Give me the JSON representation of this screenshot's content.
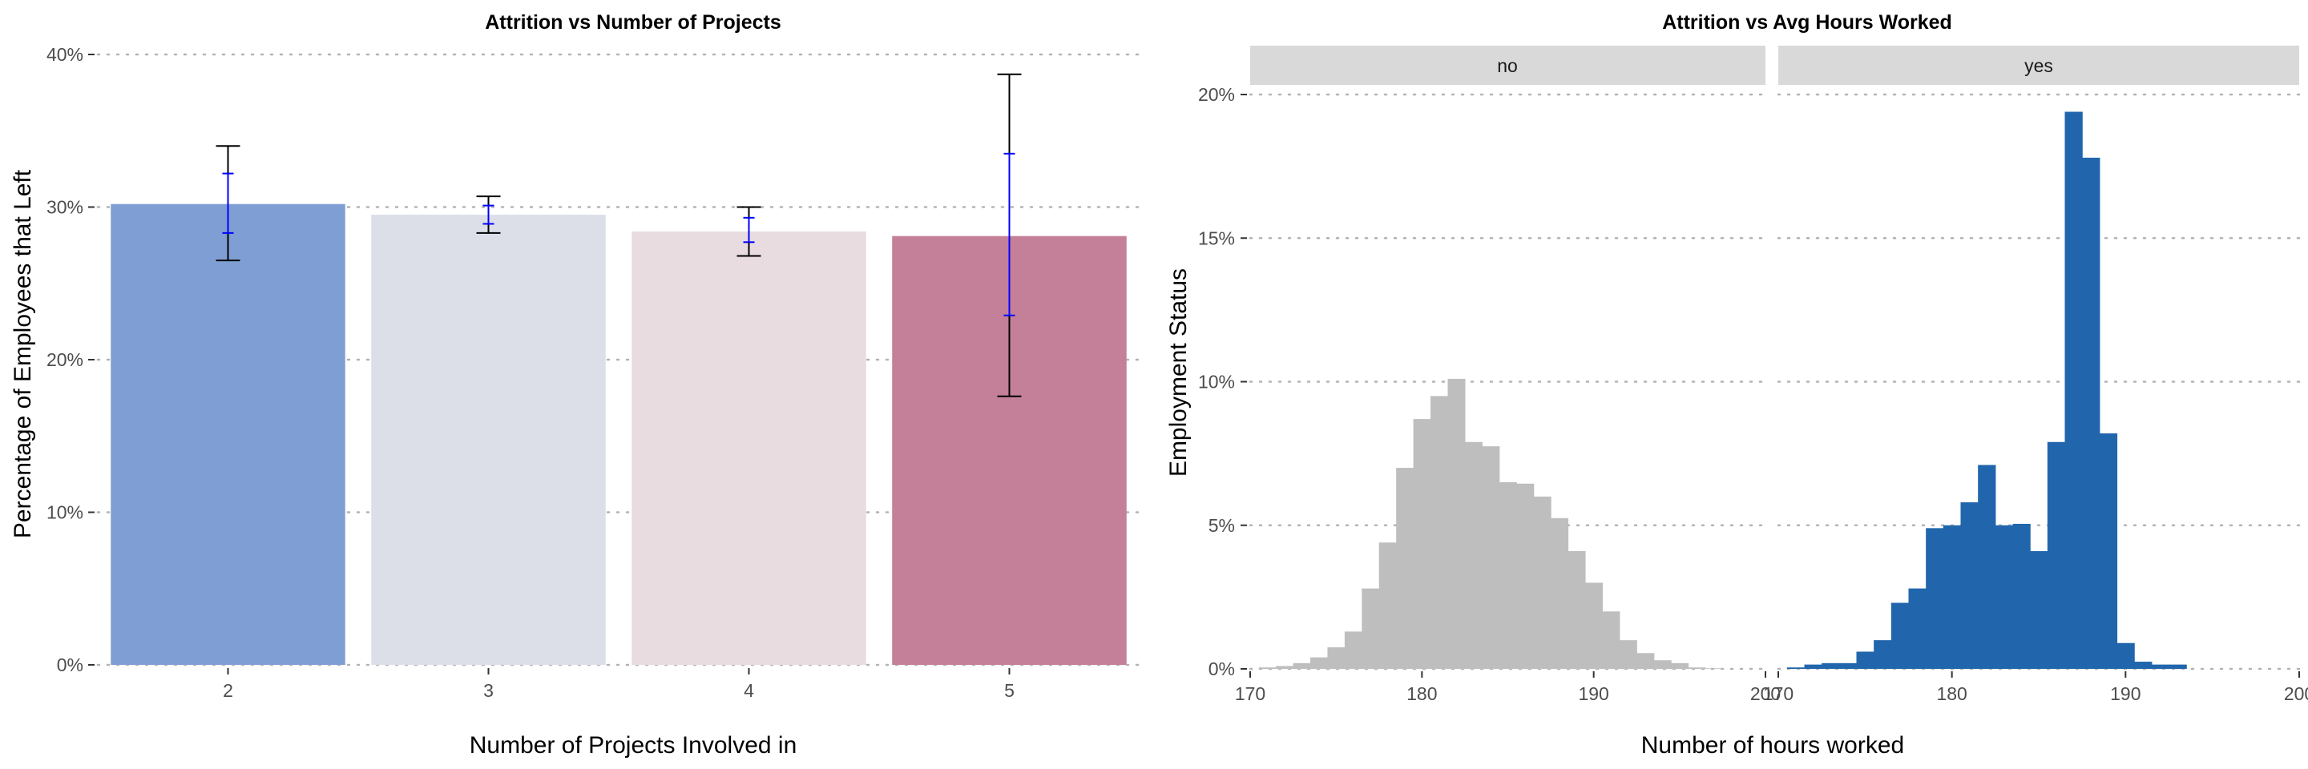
{
  "chart_data": [
    {
      "type": "bar",
      "title": "Attrition vs Number of Projects",
      "xlabel": "Number of Projects Involved in",
      "ylabel": "Percentage of Employees that Left",
      "categories": [
        "2",
        "3",
        "4",
        "5"
      ],
      "values": [
        30.2,
        29.5,
        28.4,
        28.1
      ],
      "bar_colors": [
        "#7f9fd4",
        "#dcdfe8",
        "#e8dce0",
        "#c47f99"
      ],
      "error_bars_outer": [
        [
          26.5,
          34.0
        ],
        [
          28.3,
          30.7
        ],
        [
          26.8,
          30.0
        ],
        [
          17.6,
          38.7
        ]
      ],
      "error_bars_inner": [
        [
          28.3,
          32.2
        ],
        [
          28.9,
          30.1
        ],
        [
          27.7,
          29.3
        ],
        [
          22.9,
          33.5
        ]
      ],
      "error_colors": {
        "outer": "#000000",
        "inner": "#0000ff"
      },
      "ylim": [
        0,
        40
      ],
      "yticks": [
        0,
        10,
        20,
        30,
        40
      ],
      "ytick_labels": [
        "0%",
        "10%",
        "20%",
        "30%",
        "40%"
      ],
      "grid": "horizontal dotted"
    },
    {
      "type": "bar",
      "subtype": "histogram",
      "title": "Attrition vs Avg Hours Worked",
      "xlabel": "Number of hours worked",
      "ylabel": "Employment Status",
      "bin_width": 1,
      "xlim": [
        170,
        200
      ],
      "xticks": [
        170,
        180,
        190,
        200
      ],
      "ylim": [
        0,
        20
      ],
      "yticks": [
        0,
        5,
        10,
        15,
        20
      ],
      "ytick_labels": [
        "0%",
        "5%",
        "10%",
        "15%",
        "20%"
      ],
      "grid": "horizontal dotted",
      "panels": [
        {
          "label": "no",
          "color": "#bebebe",
          "bin_start": 171,
          "values": [
            0.05,
            0.1,
            0.2,
            0.4,
            0.75,
            1.3,
            2.8,
            4.4,
            7.0,
            8.7,
            9.5,
            10.1,
            7.9,
            7.75,
            6.5,
            6.45,
            6.0,
            5.25,
            4.1,
            3.0,
            2.0,
            1.0,
            0.55,
            0.3,
            0.2,
            0.05,
            0.02
          ]
        },
        {
          "label": "yes",
          "color": "#2166ac",
          "bin_start": 171,
          "values": [
            0.05,
            0.15,
            0.2,
            0.2,
            0.6,
            1.0,
            2.3,
            2.8,
            4.9,
            5.0,
            5.8,
            7.1,
            5.0,
            5.05,
            4.1,
            7.9,
            19.4,
            17.8,
            8.2,
            0.9,
            0.25,
            0.15,
            0.15
          ]
        }
      ]
    }
  ]
}
